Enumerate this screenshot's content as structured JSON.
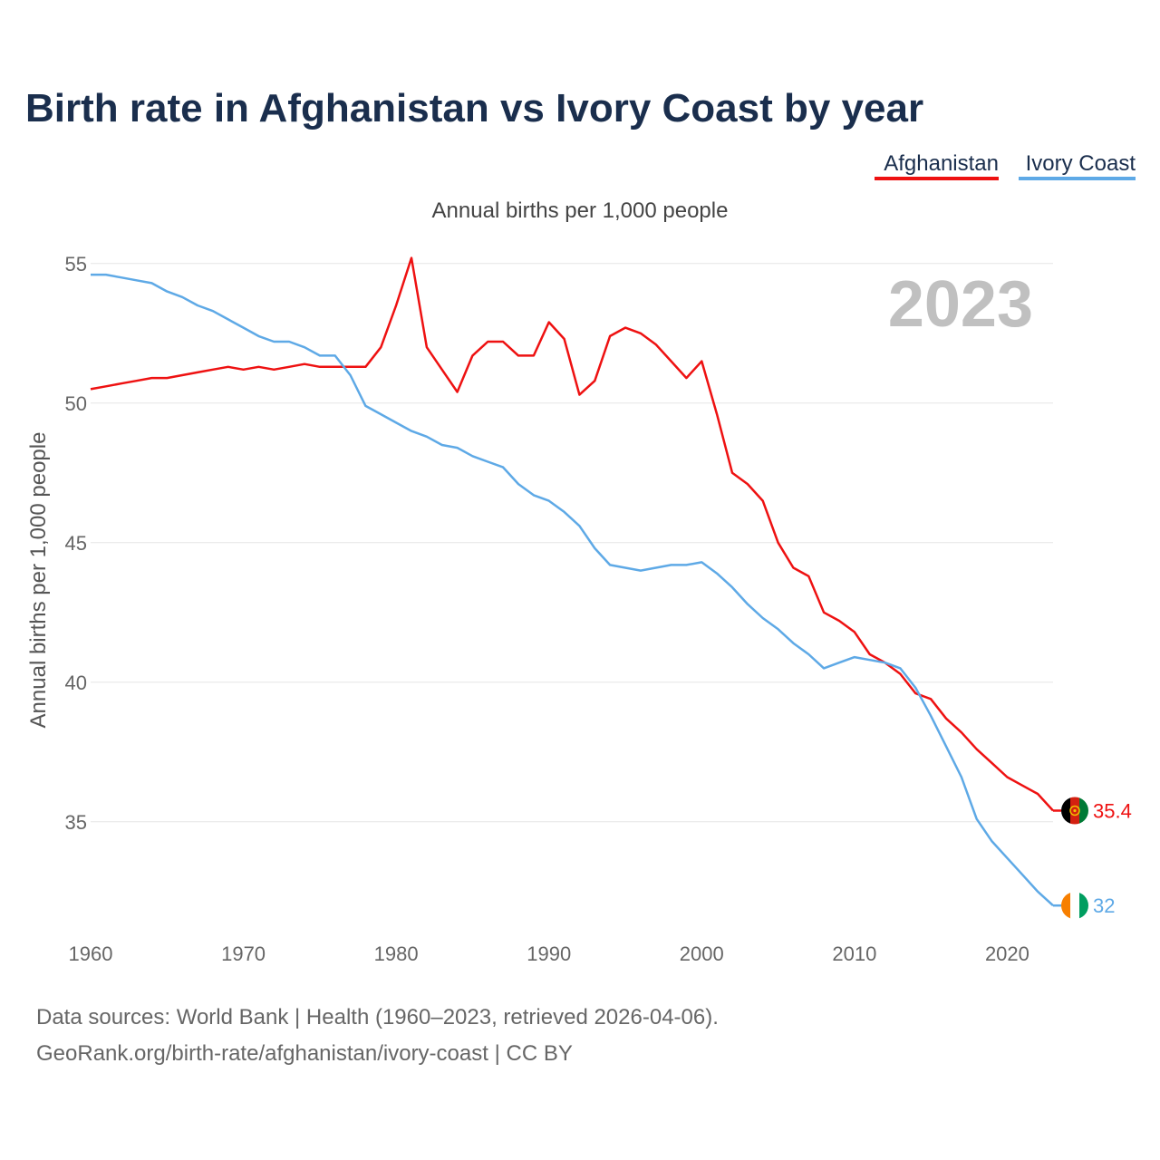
{
  "chart_data": {
    "type": "line",
    "title": "Birth rate in Afghanistan vs Ivory Coast by year",
    "subtitle": "Annual births per 1,000 people",
    "ylabel": "Annual births per 1,000 people",
    "xlabel": "",
    "year_label": "2023",
    "xlim": [
      1960,
      2023
    ],
    "ylim": [
      31,
      56
    ],
    "x_ticks": [
      1960,
      1970,
      1980,
      1990,
      2000,
      2010,
      2020
    ],
    "y_ticks": [
      35,
      40,
      45,
      50,
      55
    ],
    "grid": true,
    "legend_position": "top-right",
    "x": [
      1960,
      1961,
      1962,
      1963,
      1964,
      1965,
      1966,
      1967,
      1968,
      1969,
      1970,
      1971,
      1972,
      1973,
      1974,
      1975,
      1976,
      1977,
      1978,
      1979,
      1980,
      1981,
      1982,
      1983,
      1984,
      1985,
      1986,
      1987,
      1988,
      1989,
      1990,
      1991,
      1992,
      1993,
      1994,
      1995,
      1996,
      1997,
      1998,
      1999,
      2000,
      2001,
      2002,
      2003,
      2004,
      2005,
      2006,
      2007,
      2008,
      2009,
      2010,
      2011,
      2012,
      2013,
      2014,
      2015,
      2016,
      2017,
      2018,
      2019,
      2020,
      2021,
      2022,
      2023
    ],
    "series": [
      {
        "name": "Afghanistan",
        "color": "#ee1111",
        "end_label": "35.4",
        "values": [
          50.5,
          50.6,
          50.7,
          50.8,
          50.9,
          50.9,
          51.0,
          51.1,
          51.2,
          51.3,
          51.2,
          51.3,
          51.2,
          51.3,
          51.4,
          51.3,
          51.3,
          51.3,
          51.3,
          52.0,
          53.5,
          55.2,
          52.0,
          51.2,
          50.4,
          51.7,
          52.2,
          52.2,
          51.7,
          51.7,
          52.9,
          52.3,
          50.3,
          50.8,
          52.4,
          52.7,
          52.5,
          52.1,
          51.5,
          50.9,
          51.5,
          49.6,
          47.5,
          47.1,
          46.5,
          45.0,
          44.1,
          43.8,
          42.5,
          42.2,
          41.8,
          41.0,
          40.7,
          40.3,
          39.6,
          39.4,
          38.7,
          38.2,
          37.6,
          37.1,
          36.6,
          36.3,
          36.0,
          35.4
        ]
      },
      {
        "name": "Ivory Coast",
        "color": "#5ea9e6",
        "end_label": "32",
        "values": [
          54.6,
          54.6,
          54.5,
          54.4,
          54.3,
          54.0,
          53.8,
          53.5,
          53.3,
          53.0,
          52.7,
          52.4,
          52.2,
          52.2,
          52.0,
          51.7,
          51.7,
          51.0,
          49.9,
          49.6,
          49.3,
          49.0,
          48.8,
          48.5,
          48.4,
          48.1,
          47.9,
          47.7,
          47.1,
          46.7,
          46.5,
          46.1,
          45.6,
          44.8,
          44.2,
          44.1,
          44.0,
          44.1,
          44.2,
          44.2,
          44.3,
          43.9,
          43.4,
          42.8,
          42.3,
          41.9,
          41.4,
          41.0,
          40.5,
          40.7,
          40.9,
          40.8,
          40.7,
          40.5,
          39.8,
          38.8,
          37.7,
          36.6,
          35.1,
          34.3,
          33.7,
          33.1,
          32.5,
          32.0
        ]
      }
    ]
  },
  "icons": {
    "afghanistan_flag": "afghanistan-flag-icon",
    "ivory_coast_flag": "ivory-coast-flag-icon"
  },
  "flag_colors": {
    "afghanistan": [
      "#000000",
      "#d32011",
      "#007a36"
    ],
    "ivory_coast": [
      "#f77f00",
      "#ffffff",
      "#009e60"
    ]
  },
  "footer": {
    "source_line": "Data sources: World Bank | Health (1960–2023, retrieved 2026-04-06).",
    "url_line": "GeoRank.org/birth-rate/afghanistan/ivory-coast | CC BY"
  }
}
